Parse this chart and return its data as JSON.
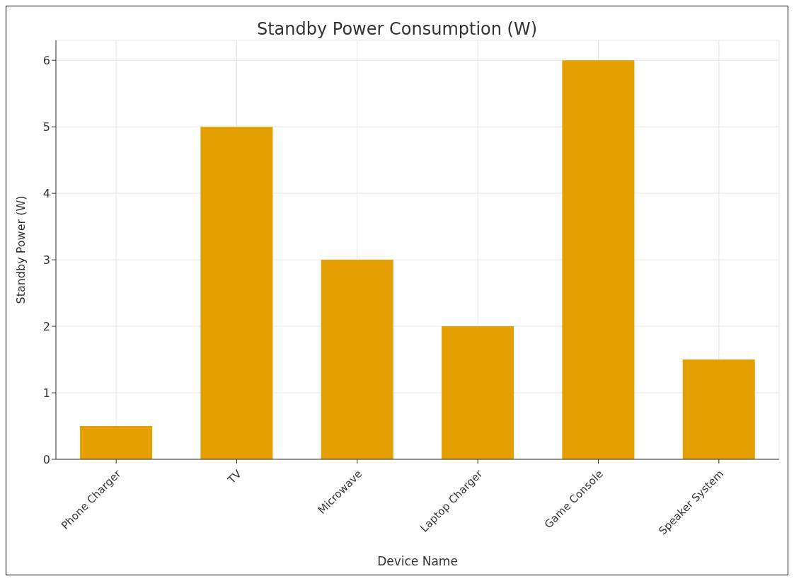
{
  "chart_data": {
    "type": "bar",
    "title": "Standby Power Consumption (W)",
    "xlabel": "Device Name",
    "ylabel": "Standby Power (W)",
    "categories": [
      "Phone Charger",
      "TV",
      "Microwave",
      "Laptop Charger",
      "Game Console",
      "Speaker System"
    ],
    "values": [
      0.5,
      5,
      3,
      2,
      6,
      1.5
    ],
    "color": "#e69f00",
    "ylim": [
      0,
      6.3
    ],
    "yticks": [
      0,
      1,
      2,
      3,
      4,
      5,
      6
    ],
    "grid": true
  }
}
